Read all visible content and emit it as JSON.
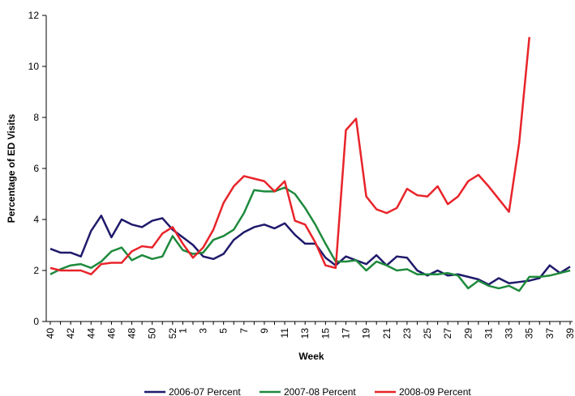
{
  "chart_data": {
    "type": "line",
    "x_label": "Week",
    "y_label": "Percentage of ED Visits",
    "categories": [
      40,
      null,
      42,
      null,
      44,
      null,
      46,
      null,
      48,
      null,
      50,
      null,
      52,
      1,
      null,
      3,
      null,
      5,
      null,
      7,
      null,
      9,
      null,
      11,
      null,
      13,
      null,
      15,
      null,
      17,
      null,
      19,
      null,
      21,
      null,
      23,
      null,
      25,
      null,
      27,
      null,
      29,
      null,
      31,
      null,
      33,
      null,
      35,
      null,
      37,
      null,
      39
    ],
    "series": [
      {
        "name": "2006-07 Percent",
        "color": "#1f1a6b",
        "values": [
          2.85,
          2.7,
          2.7,
          2.55,
          3.55,
          4.15,
          3.3,
          4.0,
          3.8,
          3.7,
          3.95,
          4.05,
          3.6,
          3.3,
          3.0,
          2.55,
          2.45,
          2.65,
          3.2,
          3.5,
          3.7,
          3.8,
          3.65,
          3.85,
          3.4,
          3.05,
          3.05,
          2.5,
          2.2,
          2.55,
          2.4,
          2.25,
          2.6,
          2.2,
          2.55,
          2.5,
          2.0,
          1.8,
          2.0,
          1.8,
          1.85,
          1.75,
          1.65,
          1.45,
          1.7,
          1.5,
          1.55,
          1.6,
          1.7,
          2.2,
          1.9,
          2.15
        ]
      },
      {
        "name": "2007-08 Percent",
        "color": "#1e8a3c",
        "values": [
          1.85,
          2.05,
          2.2,
          2.25,
          2.1,
          2.35,
          2.75,
          2.9,
          2.4,
          2.6,
          2.45,
          2.55,
          3.35,
          2.8,
          2.65,
          2.7,
          3.2,
          3.35,
          3.6,
          4.25,
          5.15,
          5.1,
          5.1,
          5.25,
          5.0,
          4.45,
          3.8,
          3.05,
          2.35,
          2.35,
          2.4,
          2.0,
          2.35,
          2.2,
          2.0,
          2.05,
          1.85,
          1.85,
          1.85,
          1.9,
          1.8,
          1.3,
          1.6,
          1.4,
          1.3,
          1.4,
          1.2,
          1.75,
          1.75,
          1.8,
          1.9,
          2.0
        ]
      },
      {
        "name": "2008-09 Percent",
        "color": "#e8242a",
        "values": [
          2.1,
          2.0,
          2.0,
          2.0,
          1.85,
          2.25,
          2.3,
          2.3,
          2.75,
          2.95,
          2.9,
          3.45,
          3.7,
          3.05,
          2.5,
          2.9,
          3.6,
          4.65,
          5.3,
          5.7,
          5.6,
          5.5,
          5.1,
          5.5,
          3.95,
          3.8,
          3.1,
          2.2,
          2.1,
          7.5,
          7.95,
          4.9,
          4.4,
          4.25,
          4.45,
          5.2,
          4.95,
          4.9,
          5.3,
          4.6,
          4.9,
          5.5,
          5.75,
          5.3,
          4.8,
          4.3,
          7.0,
          11.15,
          null,
          null,
          null,
          null
        ]
      }
    ],
    "ylim": [
      0,
      12
    ],
    "yticks": [
      0,
      2,
      4,
      6,
      8,
      10,
      12
    ]
  }
}
